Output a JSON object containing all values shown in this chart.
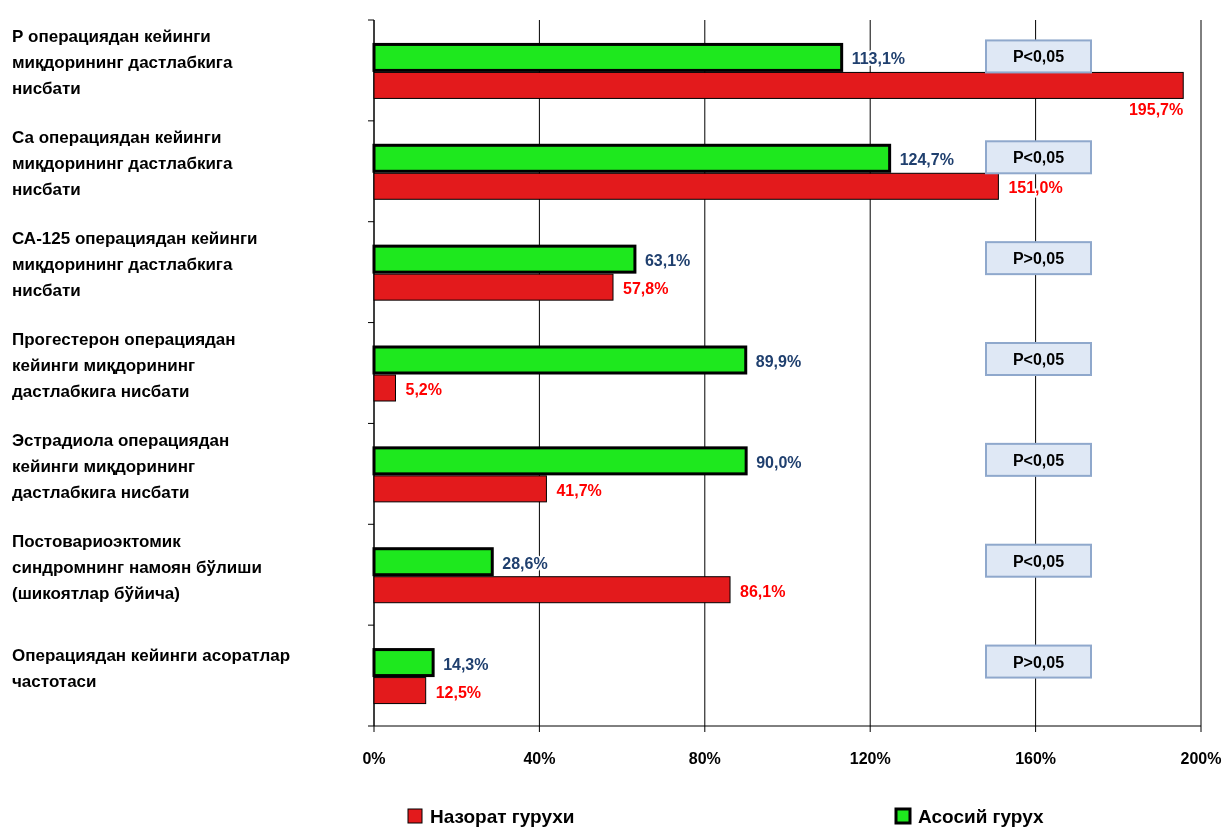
{
  "chart_data": {
    "type": "bar",
    "orientation": "horizontal",
    "categories": [
      "Р операциядан кейинги миқдорининг дастлабкига нисбати",
      "Са операциядан кейинги миқдорининг дастлабкига нисбати",
      "СА-125 операциядан кейинги миқдорининг дастлабкига нисбати",
      "Прогестерон операциядан кейинги миқдорининг дастлабкига нисбати",
      "Эстрадиола операциядан кейинги миқдорининг дастлабкига нисбати",
      "Постовариоэктомик синдромнинг намоян бўлиши (шикоятлар бўйича)",
      "Операциядан кейинги асоратлар частотаси"
    ],
    "series": [
      {
        "name": "Назорат гурухи",
        "color": "#e31a1c",
        "values": [
          195.7,
          151.0,
          57.8,
          5.2,
          41.7,
          86.1,
          12.5
        ],
        "value_labels": [
          "195,7%",
          "151,0%",
          "57,8%",
          "5,2%",
          "41,7%",
          "86,1%",
          "12,5%"
        ]
      },
      {
        "name": "Асосий гурух",
        "color": "#1ee81e",
        "values": [
          113.1,
          124.7,
          63.1,
          89.9,
          90.0,
          28.6,
          14.3
        ],
        "value_labels": [
          "113,1%",
          "124,7%",
          "63,1%",
          "89,9%",
          "90,0%",
          "28,6%",
          "14,3%"
        ]
      }
    ],
    "xlim": [
      0,
      200
    ],
    "xticks": [
      {
        "value": 0,
        "label": "0%"
      },
      {
        "value": 40,
        "label": "40%"
      },
      {
        "value": 80,
        "label": "80%"
      },
      {
        "value": 120,
        "label": "120%"
      },
      {
        "value": 160,
        "label": "160%"
      },
      {
        "value": 200,
        "label": "200%"
      }
    ],
    "grid": "x",
    "legend": "bottom",
    "annotations": [
      "P<0,05",
      "P<0,05",
      "P>0,05",
      "P<0,05",
      "P<0,05",
      "P<0,05",
      "P>0,05"
    ]
  }
}
